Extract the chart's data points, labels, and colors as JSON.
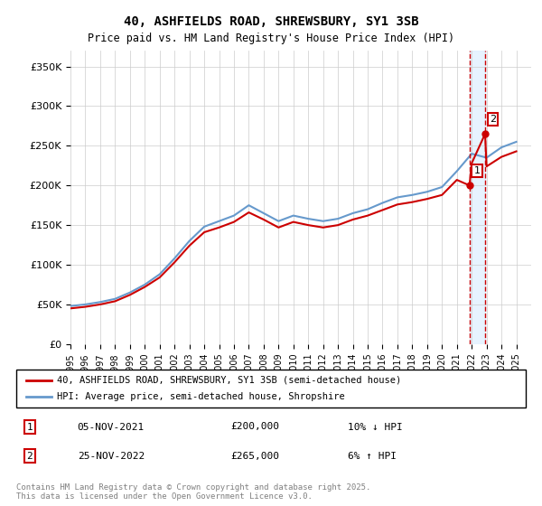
{
  "title": "40, ASHFIELDS ROAD, SHREWSBURY, SY1 3SB",
  "subtitle": "Price paid vs. HM Land Registry's House Price Index (HPI)",
  "ylabel_ticks": [
    "£0",
    "£50K",
    "£100K",
    "£150K",
    "£200K",
    "£250K",
    "£300K",
    "£350K"
  ],
  "ytick_values": [
    0,
    50000,
    100000,
    150000,
    200000,
    250000,
    300000,
    350000
  ],
  "ylim": [
    0,
    370000
  ],
  "xlim_start": 1995.0,
  "xlim_end": 2026.0,
  "sale1_date": 2021.85,
  "sale1_price": 200000,
  "sale1_label": "1",
  "sale2_date": 2022.9,
  "sale2_price": 265000,
  "sale2_label": "2",
  "hpi_color": "#6699cc",
  "price_color": "#cc0000",
  "shade_color": "#ddeeff",
  "grid_color": "#cccccc",
  "legend_line1": "40, ASHFIELDS ROAD, SHREWSBURY, SY1 3SB (semi-detached house)",
  "legend_line2": "HPI: Average price, semi-detached house, Shropshire",
  "footnote": "Contains HM Land Registry data © Crown copyright and database right 2025.\nThis data is licensed under the Open Government Licence v3.0.",
  "table_row1": [
    "1",
    "05-NOV-2021",
    "£200,000",
    "10% ↓ HPI"
  ],
  "table_row2": [
    "2",
    "25-NOV-2022",
    "£265,000",
    "6% ↑ HPI"
  ]
}
